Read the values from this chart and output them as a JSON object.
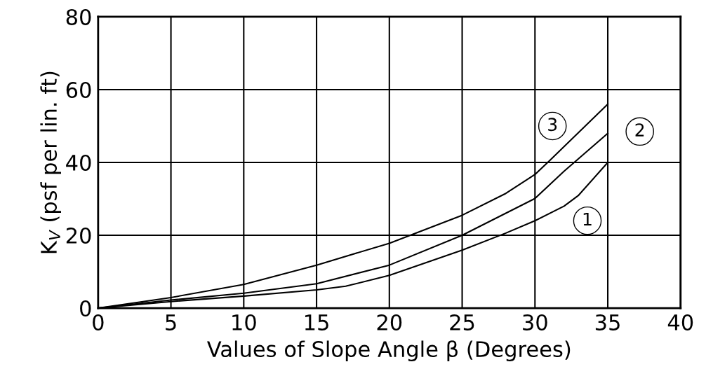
{
  "chart_data": {
    "type": "line",
    "xlabel": "Values of Slope Angle β (Degrees)",
    "ylabel": "K$_{V}$ (psf per lin. ft)",
    "xlim": [
      0,
      40
    ],
    "ylim": [
      0,
      80
    ],
    "xticks": [
      0,
      5,
      10,
      15,
      20,
      25,
      30,
      35,
      40
    ],
    "yticks": [
      0,
      20,
      40,
      60,
      80
    ],
    "grid": true,
    "marker": "none",
    "line_style": "solid",
    "series": [
      {
        "color": "#000000",
        "x": [
          0,
          5,
          10,
          15,
          17,
          20,
          25,
          28,
          30,
          32,
          33,
          35
        ],
        "values": [
          0,
          1.8,
          3.3,
          5.0,
          6.0,
          9.0,
          15.9,
          20.6,
          24.0,
          28.0,
          31.0,
          40.0
        ]
      },
      {
        "color": "#000000",
        "x": [
          0,
          5,
          10,
          15,
          20,
          25,
          30,
          32,
          35
        ],
        "values": [
          0,
          2.2,
          4.1,
          6.7,
          11.8,
          20.0,
          30.1,
          37.6,
          48.0
        ]
      },
      {
        "color": "#000000",
        "x": [
          0,
          5,
          10,
          15,
          20,
          25,
          28,
          30,
          31,
          35
        ],
        "values": [
          0,
          2.9,
          6.5,
          11.8,
          17.8,
          25.5,
          31.5,
          36.7,
          40.5,
          56.0
        ]
      }
    ],
    "annotations": [
      {
        "text": "1",
        "x": 33.6,
        "y": 24
      },
      {
        "text": "2",
        "x": 37.2,
        "y": 48.5
      },
      {
        "text": "3",
        "x": 31.2,
        "y": 50
      }
    ]
  }
}
